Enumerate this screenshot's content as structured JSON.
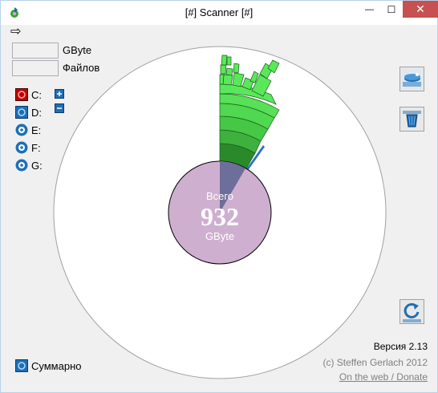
{
  "window": {
    "title": "[#] Scanner [#]"
  },
  "titlebar": {
    "minimize": "—",
    "maximize": "☐",
    "close": "✕"
  },
  "menu": {
    "back_glyph": "⇨"
  },
  "stats": {
    "size_value": "",
    "size_unit": "GByte",
    "files_value": "",
    "files_unit": "Файлов"
  },
  "drives": [
    {
      "label": "C:",
      "icon": "hdd-red-icon",
      "color": "#c00000"
    },
    {
      "label": "D:",
      "icon": "hdd-blue-icon",
      "color": "#1e6fb5"
    },
    {
      "label": "E:",
      "icon": "cd-drive-icon",
      "color": "#1e6fb5"
    },
    {
      "label": "F:",
      "icon": "cd-drive-icon",
      "color": "#1e6fb5"
    },
    {
      "label": "G:",
      "icon": "cd-drive-icon",
      "color": "#1e6fb5"
    }
  ],
  "zoom": {
    "plus": "+",
    "minus": "−"
  },
  "center": {
    "label": "Всего",
    "value": "932",
    "unit": "GByte"
  },
  "footer": {
    "version": "Версия 2.13",
    "copyright": "(c) Steffen Gerlach 2012",
    "link": "On the web / Donate"
  },
  "summary": {
    "label": "Суммарно"
  },
  "colors": {
    "center_fill": "#cfafd0",
    "green_dark": "#2a8a2a",
    "green_mid": "#3ec43e",
    "green_light": "#5ae85a",
    "slice_overlay": "#6e6e9a"
  }
}
